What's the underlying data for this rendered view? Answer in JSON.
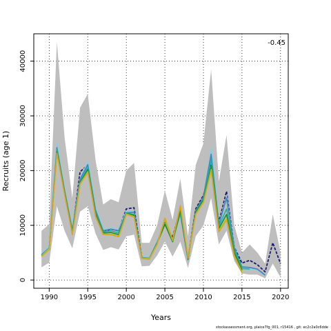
{
  "chart_data": {
    "type": "line",
    "xlabel": "Years",
    "ylabel": "Recruits (age 1)",
    "annotation": "-0.45",
    "xlim": [
      1988,
      2021
    ],
    "ylim": [
      -1500,
      45000
    ],
    "xticks": [
      1990,
      1995,
      2000,
      2005,
      2010,
      2015,
      2020
    ],
    "yticks": [
      0,
      10000,
      20000,
      30000,
      40000
    ],
    "grid": true,
    "band": {
      "x": [
        1989,
        1990,
        1991,
        1992,
        1993,
        1994,
        1995,
        1996,
        1997,
        1998,
        1999,
        2000,
        2001,
        2002,
        2003,
        2004,
        2005,
        2006,
        2007,
        2008,
        2009,
        2010,
        2011,
        2012,
        2013,
        2014,
        2015,
        2016,
        2017,
        2018,
        2019,
        2020
      ],
      "upper": [
        9000,
        10200,
        43500,
        26000,
        15000,
        31500,
        34000,
        22000,
        13800,
        14800,
        14200,
        20000,
        21400,
        6800,
        6800,
        10000,
        16400,
        11000,
        18500,
        8000,
        21000,
        25000,
        38500,
        18000,
        26500,
        10000,
        5000,
        6500,
        5000,
        3000,
        12000,
        5000
      ],
      "lower": [
        2300,
        3200,
        13500,
        9000,
        5800,
        12500,
        13500,
        8500,
        5500,
        6000,
        5600,
        8000,
        8300,
        2500,
        2600,
        4500,
        7000,
        4300,
        7000,
        2200,
        8000,
        10000,
        15000,
        6500,
        9000,
        3500,
        1200,
        1000,
        1000,
        300,
        3000,
        500
      ],
      "color": "#bebebe"
    },
    "series": [
      {
        "color": "#191970",
        "dashed": true,
        "x": [
          1989,
          1990,
          1991,
          1992,
          1993,
          1994,
          1995,
          1996,
          1997,
          1998,
          1999,
          2000,
          2001,
          2002,
          2003,
          2004,
          2005,
          2006,
          2007,
          2008,
          2009,
          2010,
          2011,
          2012,
          2013,
          2014,
          2015,
          2016,
          2017,
          2018,
          2019,
          2020
        ],
        "values": [
          4500,
          5700,
          23600,
          16000,
          8800,
          19800,
          21000,
          12500,
          8800,
          9300,
          9000,
          13000,
          13200,
          4200,
          4000,
          6800,
          10500,
          7700,
          13200,
          3800,
          13000,
          15500,
          21000,
          10600,
          16200,
          6000,
          3100,
          3600,
          2800,
          1500,
          6800,
          3000
        ]
      },
      {
        "color": "#87ceeb",
        "x": [
          1989,
          1990,
          1991,
          1992,
          1993,
          1994,
          1995,
          1996,
          1997,
          1998,
          1999,
          2000,
          2001,
          2002,
          2003,
          2004,
          2005,
          2006,
          2007,
          2008,
          2009,
          2010,
          2011,
          2012,
          2013,
          2014,
          2015,
          2016,
          2017,
          2018
        ],
        "values": [
          4800,
          6100,
          24900,
          16600,
          9400,
          18600,
          21600,
          13100,
          9200,
          9500,
          9200,
          12600,
          12500,
          4200,
          4100,
          7000,
          10400,
          7100,
          11900,
          3700,
          12500,
          15200,
          24100,
          10200,
          15400,
          6000,
          2300,
          2100,
          1900,
          700
        ]
      },
      {
        "color": "#4682b4",
        "x": [
          1989,
          1990,
          1991,
          1992,
          1993,
          1994,
          1995,
          1996,
          1997,
          1998,
          1999,
          2000,
          2001,
          2002,
          2003,
          2004,
          2005,
          2006,
          2007,
          2008,
          2009,
          2010,
          2011,
          2012,
          2013,
          2014,
          2015,
          2016,
          2017,
          2018
        ],
        "values": [
          4600,
          5900,
          24200,
          16300,
          9100,
          18400,
          21100,
          12800,
          9000,
          9300,
          9000,
          12300,
          12400,
          4100,
          4000,
          6900,
          10400,
          7200,
          12200,
          3700,
          12700,
          15200,
          23000,
          10200,
          15000,
          5900,
          2400,
          2300,
          2000,
          900
        ]
      },
      {
        "color": "#20b2aa",
        "x": [
          1989,
          1990,
          1991,
          1992,
          1993,
          1994,
          1995,
          1996,
          1997,
          1998,
          1999,
          2000,
          2001,
          2002,
          2003,
          2004,
          2005,
          2006,
          2007,
          2008,
          2009,
          2010,
          2011,
          2012,
          2013,
          2014,
          2015,
          2016
        ],
        "values": [
          4500,
          5800,
          23800,
          16000,
          8800,
          18000,
          20600,
          12300,
          8800,
          9000,
          8600,
          12300,
          12000,
          4100,
          4000,
          6800,
          10300,
          7000,
          12500,
          3800,
          12500,
          14800,
          22000,
          9800,
          13000,
          5500,
          2100,
          2000
        ]
      },
      {
        "color": "#228b22",
        "x": [
          1989,
          1990,
          1991,
          1992,
          1993,
          1994,
          1995,
          1996,
          1997,
          1998,
          1999,
          2000,
          2001,
          2002,
          2003,
          2004,
          2005,
          2006,
          2007,
          2008,
          2009,
          2010,
          2011,
          2012,
          2013,
          2014,
          2015
        ],
        "values": [
          4400,
          5700,
          23400,
          15800,
          8600,
          17800,
          20200,
          12000,
          8600,
          8700,
          8300,
          12200,
          11800,
          4000,
          3900,
          6700,
          10200,
          7000,
          12700,
          3800,
          12400,
          14600,
          20800,
          9400,
          12000,
          5000,
          1800
        ]
      },
      {
        "color": "#9acd32",
        "x": [
          1989,
          1990,
          1991,
          1992,
          1993,
          1994,
          1995,
          1996,
          1997,
          1998,
          1999,
          2000,
          2001,
          2002,
          2003,
          2004,
          2005,
          2006,
          2007,
          2008,
          2009,
          2010,
          2011,
          2012,
          2013,
          2014,
          2015
        ],
        "values": [
          4400,
          5800,
          23200,
          15600,
          8400,
          17600,
          19800,
          11700,
          8400,
          8400,
          8000,
          12100,
          11600,
          4000,
          3900,
          6600,
          11000,
          7200,
          13400,
          4000,
          12100,
          14300,
          20200,
          9000,
          11200,
          4500,
          1500
        ]
      },
      {
        "color": "#daa520",
        "x": [
          1989,
          1990,
          1991,
          1992,
          1993,
          1994,
          1995,
          1996,
          1997,
          1998,
          1999,
          2000,
          2001,
          2002,
          2003,
          2004,
          2005,
          2006,
          2007,
          2008,
          2009,
          2010,
          2011,
          2012,
          2013,
          2014,
          2015
        ],
        "values": [
          4300,
          5600,
          23100,
          15600,
          8300,
          17500,
          19700,
          11600,
          8300,
          8300,
          7900,
          12000,
          11500,
          3900,
          3800,
          6500,
          11300,
          7400,
          13600,
          4100,
          12000,
          14200,
          20000,
          8800,
          11000,
          4300,
          1300
        ]
      }
    ]
  },
  "credit": "stockassessment.org, plaice7fg_001, r15416 , git: ec2c2a0c6dde"
}
